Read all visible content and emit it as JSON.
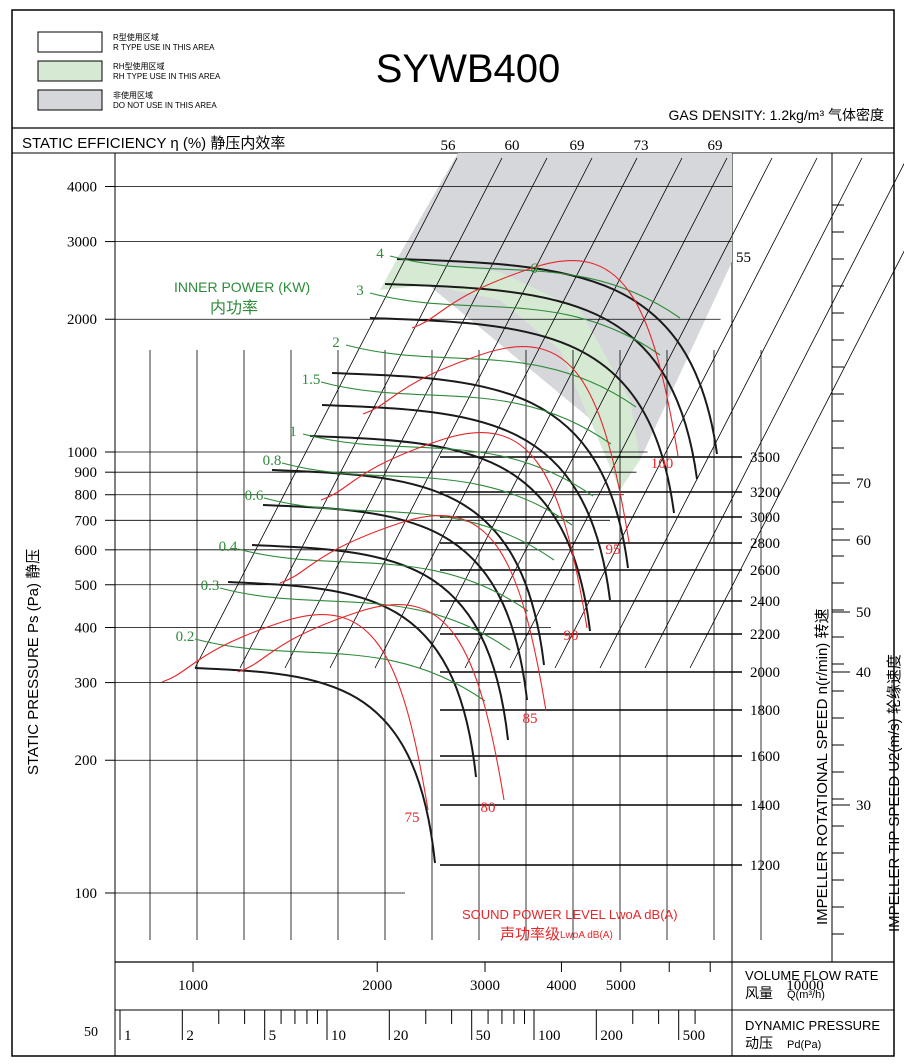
{
  "legend": [
    {
      "label_cn": "R型使用区域",
      "label_en": "R TYPE USE IN THIS AREA",
      "fill": "#ffffff"
    },
    {
      "label_cn": "RH型使用区域",
      "label_en": "RH TYPE USE IN THIS AREA",
      "fill": "#d6ead3"
    },
    {
      "label_cn": "非使用区域",
      "label_en": "DO NOT USE IN THIS AREA",
      "fill": "#d6d7da"
    }
  ],
  "header": {
    "model": "SYWB400",
    "gas_density": "GAS DENSITY: 1.2kg/m³ 气体密度",
    "efficiency_title": "STATIC EFFICIENCY η (%) 静压内效率"
  },
  "chart_data": {
    "type": "line",
    "title": "SYWB400",
    "efficiency_ticks": [
      "56",
      "60",
      "69",
      "73",
      "69",
      "55"
    ],
    "y_axis": {
      "label": "STATIC PRESSURE Ps (Pa) 静压",
      "scale": "log",
      "ylim": [
        70,
        4600
      ],
      "ticks": [
        100,
        200,
        300,
        400,
        500,
        600,
        700,
        800,
        900,
        1000,
        2000,
        3000,
        4000
      ],
      "tick_labels": [
        "100",
        "200",
        "300",
        "400",
        "500",
        "600",
        "700",
        "800",
        "900",
        "1000",
        "2000",
        "3000",
        "4000"
      ]
    },
    "x_axis_flow": {
      "label_en": "VOLUME FLOW RATE",
      "label_cn": "风量",
      "unit": "Q(m³/h)",
      "scale": "log",
      "ticks": [
        "1000",
        "2000",
        "3000",
        "4000",
        "5000",
        "10000"
      ]
    },
    "x_axis_dynamic": {
      "label_en": "DYNAMIC PRESSURE",
      "label_cn": "动压",
      "unit": "Pd(Pa)",
      "ticks": [
        "1",
        "2",
        "5",
        "10",
        "20",
        "50",
        "100",
        "200",
        "500"
      ],
      "left_label": "50"
    },
    "rotational_speed": {
      "label": "IMPELLER ROTATIONAL SPEED n(r/min) 转速",
      "values": [
        1200,
        1400,
        1600,
        1800,
        2000,
        2200,
        2400,
        2600,
        2800,
        3000,
        3200,
        3500
      ]
    },
    "tip_speed": {
      "label": "IMPELLER TIP SPEED U2(m/s) 轮缘速度",
      "values": [
        30,
        40,
        50,
        60,
        70
      ]
    },
    "inner_power": {
      "label_en": "INNER POWER (KW)",
      "label_cn": "内功率",
      "values": [
        "0.2",
        "0.3",
        "0.4",
        "0.6",
        "0.8",
        "1",
        "1.5",
        "2",
        "3",
        "4",
        "6"
      ]
    },
    "sound_power": {
      "label_en": "SOUND POWER LEVEL LwoA dB(A)",
      "label_cn": "声功率级",
      "unit": "LwoA dB(A)",
      "values": [
        "75",
        "80",
        "85",
        "90",
        "95",
        "100"
      ]
    },
    "colors": {
      "power": "#2e8b3a",
      "sound": "#e8262a",
      "curve": "#1a1a1a",
      "rh_zone": "#d6ead3",
      "no_use_zone": "#d6d7da"
    }
  }
}
